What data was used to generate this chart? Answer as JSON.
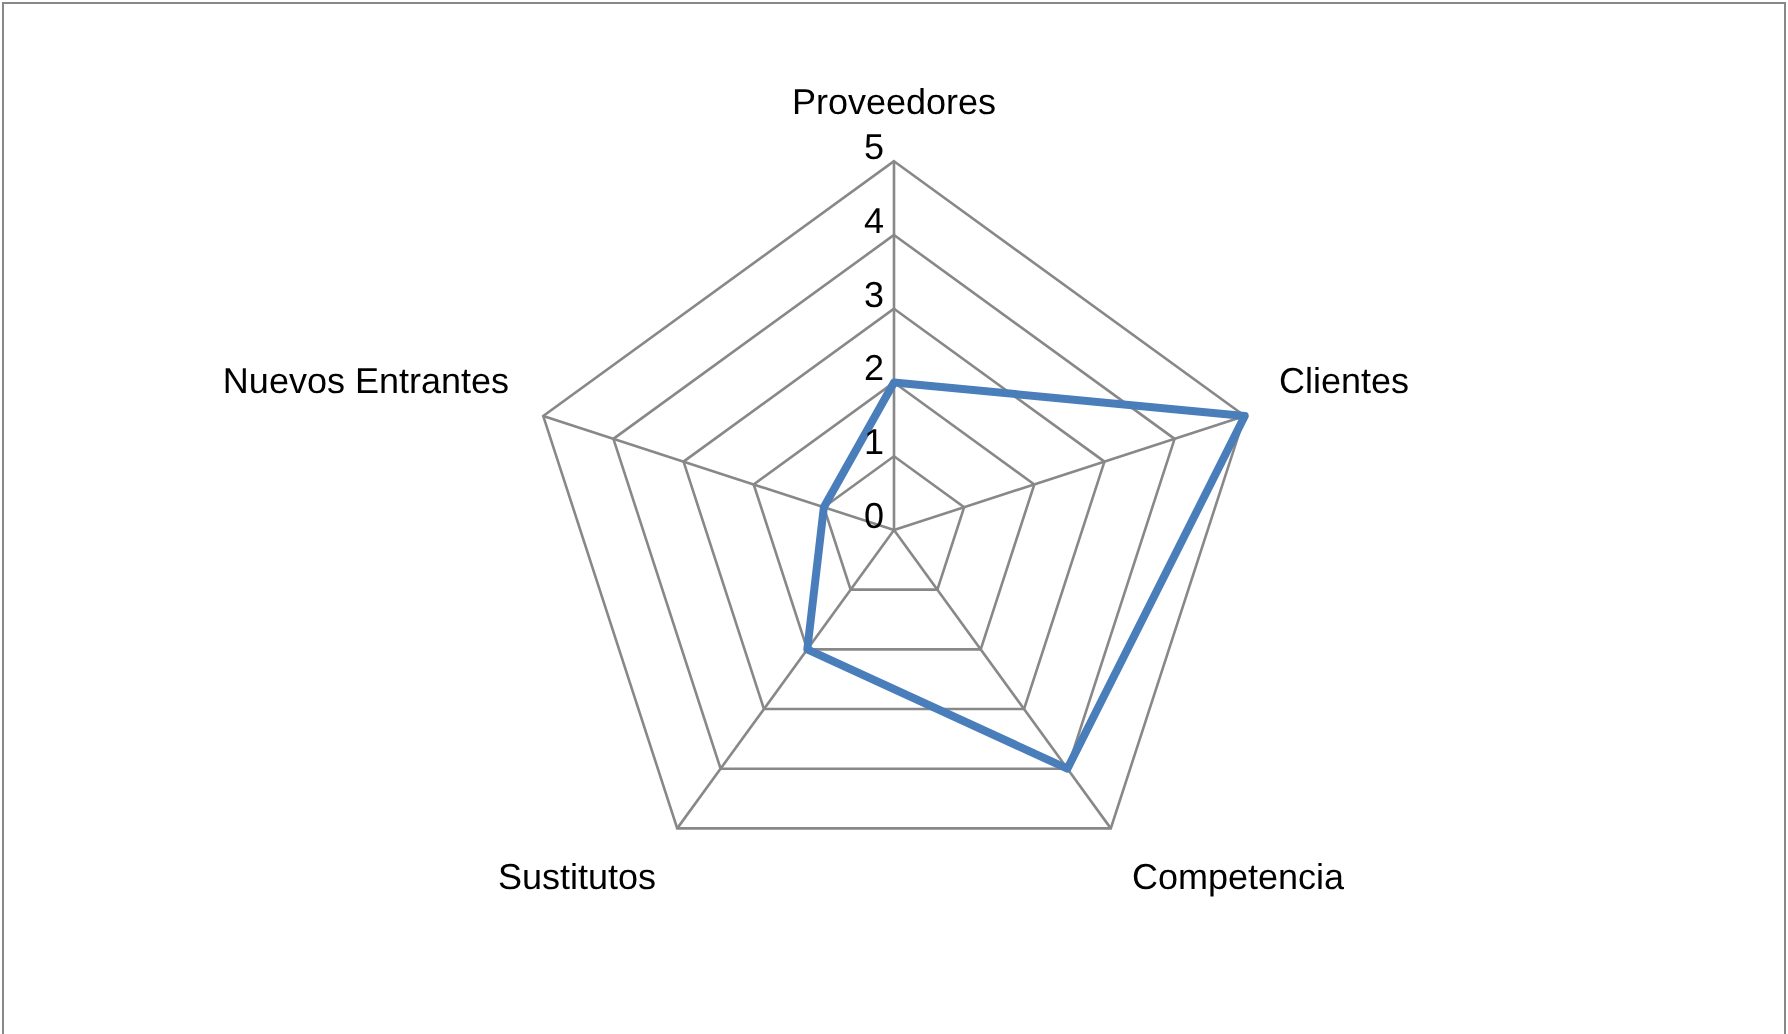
{
  "chart_data": {
    "type": "radar",
    "categories": [
      "Proveedores",
      "Clientes",
      "Competencia",
      "Sustitutos",
      "Nuevos Entrantes"
    ],
    "series": [
      {
        "color": "#4a7ebb",
        "values": [
          2,
          5,
          4,
          2,
          1
        ]
      }
    ],
    "ylim": [
      0,
      5
    ],
    "yticks": [
      0,
      1,
      2,
      3,
      4,
      5
    ],
    "grid": true
  }
}
